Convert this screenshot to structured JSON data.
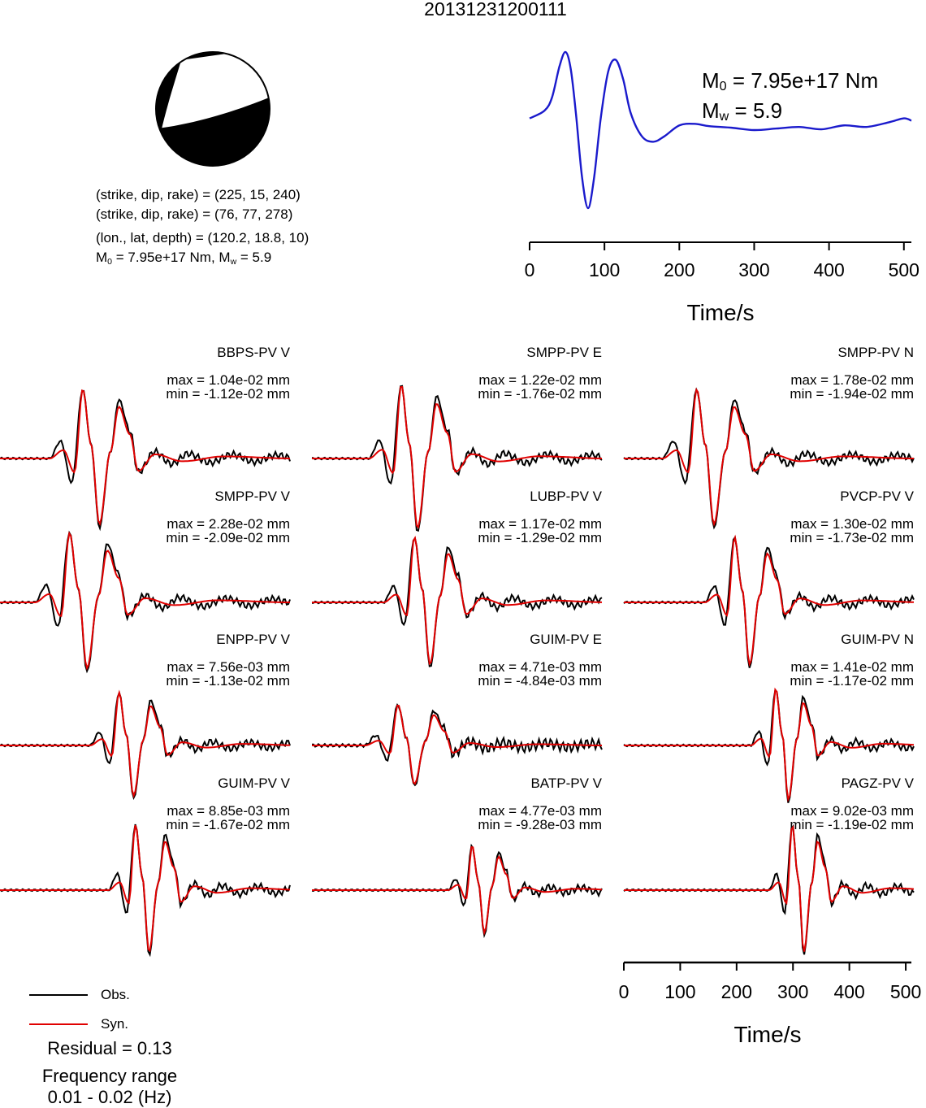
{
  "title": "20131231200111",
  "mechanism": {
    "line1": "(strike, dip, rake) = (225, 15, 240)",
    "line2": "(strike, dip, rake) = (76, 77, 278)",
    "line3": "(lon., lat, depth) = (120.2, 18.8, 10)",
    "m0_label": "M",
    "m0_sub": "0",
    "m0_value": " = 7.95e+17 Nm, M",
    "mw_sub": "w",
    "mw_value": " = 5.9"
  },
  "stf": {
    "m0_label": "M",
    "m0_sub": "0",
    "m0_value": " = 7.95e+17 Nm",
    "mw_label": "M",
    "mw_sub": "w",
    "mw_value": " = 5.9",
    "xlabel": "Time/s",
    "ticks": [
      "0",
      "100",
      "200",
      "300",
      "400",
      "500"
    ],
    "color": "#1a1acc"
  },
  "bottom_axis": {
    "xlabel": "Time/s",
    "ticks": [
      "0",
      "100",
      "200",
      "300",
      "400",
      "500"
    ]
  },
  "legend": {
    "obs": "Obs.",
    "syn": "Syn.",
    "obs_color": "#000000",
    "syn_color": "#e00000"
  },
  "residual": "Residual = 0.13",
  "freq_title": "Frequency range",
  "freq_value": "0.01 - 0.02 (Hz)",
  "traces": [
    {
      "name": "BBPS-PV V",
      "max": "max = 1.04e-02 mm",
      "min": "min = -1.12e-02 mm"
    },
    {
      "name": "SMPP-PV E",
      "max": "max = 1.22e-02 mm",
      "min": "min = -1.76e-02 mm"
    },
    {
      "name": "SMPP-PV N",
      "max": "max = 1.78e-02 mm",
      "min": "min = -1.94e-02 mm"
    },
    {
      "name": "SMPP-PV V",
      "max": "max = 2.28e-02 mm",
      "min": "min = -2.09e-02 mm"
    },
    {
      "name": "LUBP-PV V",
      "max": "max = 1.17e-02 mm",
      "min": "min = -1.29e-02 mm"
    },
    {
      "name": "PVCP-PV V",
      "max": "max = 1.30e-02 mm",
      "min": "min = -1.73e-02 mm"
    },
    {
      "name": "ENPP-PV V",
      "max": "max = 7.56e-03 mm",
      "min": "min = -1.13e-02 mm"
    },
    {
      "name": "GUIM-PV E",
      "max": "max = 4.71e-03 mm",
      "min": "min = -4.84e-03 mm"
    },
    {
      "name": "GUIM-PV N",
      "max": "max = 1.41e-02 mm",
      "min": "min = -1.17e-02 mm"
    },
    {
      "name": "GUIM-PV V",
      "max": "max = 8.85e-03 mm",
      "min": "min = -1.67e-02 mm"
    },
    {
      "name": "BATP-PV V",
      "max": "max = 4.77e-03 mm",
      "min": "min = -9.28e-03 mm"
    },
    {
      "name": "PAGZ-PV V",
      "max": "max = 9.02e-03 mm",
      "min": "min = -1.19e-02 mm"
    }
  ],
  "chart_data": [
    {
      "type": "line",
      "title": "",
      "xlabel": "Time/s",
      "ylabel": "",
      "xlim": [
        0,
        510
      ],
      "series": [
        {
          "x": [
            0,
            20,
            30,
            40,
            48,
            55,
            62,
            70,
            78,
            86,
            95,
            105,
            115,
            125,
            135,
            150,
            165,
            180,
            200,
            220,
            240,
            270,
            300,
            330,
            360,
            390,
            420,
            450,
            480,
            500,
            510
          ],
          "values": [
            0.15,
            0.25,
            0.42,
            0.82,
            1.0,
            0.78,
            0.2,
            -0.6,
            -1.0,
            -0.62,
            0.15,
            0.75,
            0.9,
            0.65,
            0.22,
            -0.08,
            -0.15,
            -0.08,
            0.06,
            0.08,
            0.05,
            0.03,
            0.0,
            0.02,
            0.04,
            0.01,
            0.06,
            0.04,
            0.1,
            0.15,
            0.12
          ]
        }
      ]
    },
    {
      "type": "line",
      "title": "",
      "xlabel": "Time/s",
      "ylabel": "",
      "xlim": [
        0,
        510
      ],
      "series": [
        {
          "name": "Obs.",
          "color": "#000000",
          "keyframes": [
            [
              0,
              0
            ],
            [
              40,
              0
            ],
            [
              55,
              0.5
            ],
            [
              70,
              -0.3
            ],
            [
              90,
              1.0
            ],
            [
              105,
              -1.0
            ],
            [
              120,
              0.8
            ],
            [
              130,
              0.5
            ],
            [
              145,
              -0.3
            ],
            [
              170,
              0.1
            ],
            [
              200,
              -0.08
            ],
            [
              250,
              0.05
            ],
            [
              300,
              -0.06
            ],
            [
              350,
              0.06
            ],
            [
              380,
              0
            ]
          ]
        },
        {
          "name": "Syn.",
          "color": "#e00000",
          "keyframes": [
            [
              0,
              0
            ],
            [
              40,
              0
            ],
            [
              60,
              0.3
            ],
            [
              75,
              -0.2
            ],
            [
              90,
              1.0
            ],
            [
              105,
              -0.95
            ],
            [
              120,
              0.7
            ],
            [
              132,
              0.4
            ],
            [
              145,
              -0.25
            ],
            [
              170,
              0.06
            ],
            [
              200,
              -0.03
            ],
            [
              380,
              0
            ]
          ]
        }
      ]
    }
  ]
}
